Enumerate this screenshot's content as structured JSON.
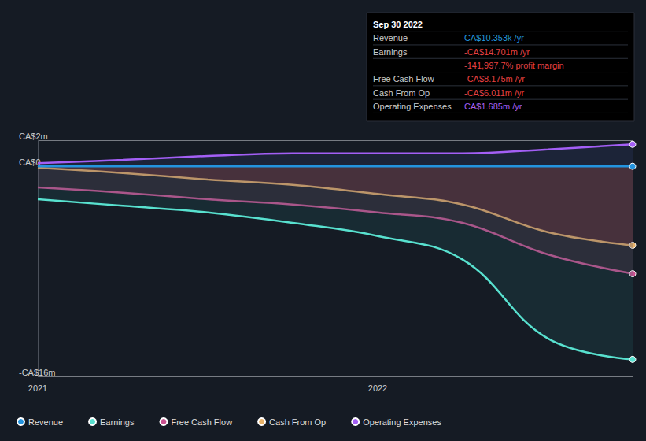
{
  "chart_data": {
    "type": "line",
    "categories": [
      "2021",
      null,
      null,
      null,
      "2022",
      null,
      null,
      null
    ],
    "series": [
      {
        "name": "Revenue",
        "color": "#2394df",
        "values": [
          0.01,
          0.01,
          0.01,
          0.01,
          0.01,
          0.01,
          0.01,
          0.010353
        ]
      },
      {
        "name": "Earnings",
        "color": "#58e1cf",
        "values": [
          -2.5,
          -3.0,
          -3.5,
          -4.3,
          -5.3,
          -7.1,
          -13.1,
          -14.701
        ]
      },
      {
        "name": "Free Cash Flow",
        "color": "#c9508f",
        "values": [
          -1.6,
          -2.0,
          -2.5,
          -2.9,
          -3.5,
          -4.3,
          -6.7,
          -8.175
        ]
      },
      {
        "name": "Cash From Op",
        "color": "#e8b36a",
        "values": [
          -0.1,
          -0.5,
          -1.0,
          -1.4,
          -2.1,
          -2.9,
          -5.0,
          -6.011
        ]
      },
      {
        "name": "Operating Expenses",
        "color": "#a35ff5",
        "values": [
          0.25,
          0.5,
          0.8,
          1.0,
          1.0,
          1.0,
          1.3,
          1.685
        ]
      }
    ],
    "ylim": [
      -16,
      2
    ],
    "yticks": [
      {
        "value": 2,
        "label": "CA$2m"
      },
      {
        "value": 0,
        "label": "CA$0"
      },
      {
        "value": -16,
        "label": "-CA$16m"
      }
    ],
    "grid": true,
    "legend": "bottom-left",
    "annotation": {
      "title": "Sep 30 2022",
      "rows": [
        {
          "label": "Revenue",
          "text": "CA$10.353k /yr",
          "color": "#2394df"
        },
        {
          "label": "Earnings",
          "text": "-CA$14.701m /yr",
          "color": "#e64141"
        },
        {
          "text": "-141,997.7% profit margin",
          "color": "#e64141"
        },
        {
          "label": "Free Cash Flow",
          "text": "-CA$8.175m /yr",
          "color": "#e64141"
        },
        {
          "label": "Cash From Op",
          "text": "-CA$6.011m /yr",
          "color": "#e64141"
        },
        {
          "label": "Operating Expenses",
          "text": "CA$1.685m /yr",
          "color": "#a35ff5"
        }
      ]
    }
  }
}
